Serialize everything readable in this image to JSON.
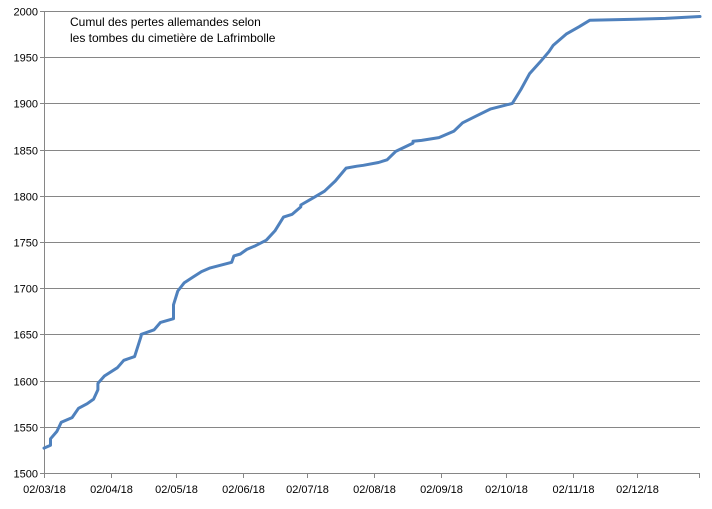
{
  "chart_data": {
    "type": "line",
    "title": "Cumul des pertes allemandes selon les tombes du cimetière de Lafrimbolle",
    "title_lines": [
      "Cumul des pertes allemandes selon",
      "les tombes du cimetière de Lafrimbolle"
    ],
    "xlabel": "",
    "ylabel": "",
    "ylim": [
      1500,
      2000
    ],
    "xlim": [
      "1918-03-02",
      "1918-12-31"
    ],
    "y_ticks": [
      "1500",
      "1550",
      "1600",
      "1650",
      "1700",
      "1750",
      "1800",
      "1850",
      "1900",
      "1950",
      "2000"
    ],
    "x_ticks": [
      {
        "date": "1918-03-02",
        "label": "02/03/18"
      },
      {
        "date": "1918-04-02",
        "label": "02/04/18"
      },
      {
        "date": "1918-05-02",
        "label": "02/05/18"
      },
      {
        "date": "1918-06-02",
        "label": "02/06/18"
      },
      {
        "date": "1918-07-02",
        "label": "02/07/18"
      },
      {
        "date": "1918-08-02",
        "label": "02/08/18"
      },
      {
        "date": "1918-09-02",
        "label": "02/09/18"
      },
      {
        "date": "1918-10-02",
        "label": "02/10/18"
      },
      {
        "date": "1918-11-02",
        "label": "02/11/18"
      },
      {
        "date": "1918-12-02",
        "label": "02/12/18"
      }
    ],
    "grid": "horizontal",
    "legend": "none",
    "line_color": "#4F81BD",
    "series": [
      {
        "x": [
          "1918-03-02",
          "1918-03-05",
          "1918-03-05",
          "1918-03-08",
          "1918-03-10",
          "1918-03-15",
          "1918-03-18",
          "1918-03-22",
          "1918-03-25",
          "1918-03-27",
          "1918-03-27",
          "1918-03-30",
          "1918-04-01",
          "1918-04-05",
          "1918-04-08",
          "1918-04-13",
          "1918-04-16",
          "1918-04-16",
          "1918-04-22",
          "1918-04-25",
          "1918-05-01",
          "1918-05-01",
          "1918-05-03",
          "1918-05-06",
          "1918-05-10",
          "1918-05-14",
          "1918-05-18",
          "1918-05-28",
          "1918-05-29",
          "1918-06-01",
          "1918-06-04",
          "1918-06-08",
          "1918-06-13",
          "1918-06-17",
          "1918-06-21",
          "1918-06-25",
          "1918-06-29",
          "1918-06-29",
          "1918-07-05",
          "1918-07-10",
          "1918-07-15",
          "1918-07-20",
          "1918-07-25",
          "1918-07-28",
          "1918-08-04",
          "1918-08-08",
          "1918-08-12",
          "1918-08-20",
          "1918-08-20",
          "1918-08-24",
          "1918-09-01",
          "1918-09-08",
          "1918-09-12",
          "1918-09-18",
          "1918-09-25",
          "1918-09-30",
          "1918-10-05",
          "1918-10-09",
          "1918-10-13",
          "1918-10-18",
          "1918-10-22",
          "1918-10-24",
          "1918-10-30",
          "1918-11-05",
          "1918-11-10",
          "1918-12-01",
          "1918-12-15",
          "1918-12-31"
        ],
        "y": [
          1527,
          1530,
          1537,
          1545,
          1555,
          1560,
          1570,
          1575,
          1580,
          1590,
          1597,
          1605,
          1608,
          1614,
          1622,
          1626,
          1648,
          1650,
          1655,
          1663,
          1667,
          1682,
          1697,
          1706,
          1712,
          1718,
          1722,
          1728,
          1735,
          1737,
          1742,
          1746,
          1752,
          1762,
          1777,
          1780,
          1788,
          1790,
          1798,
          1805,
          1816,
          1830,
          1832,
          1833,
          1836,
          1839,
          1848,
          1857,
          1859,
          1860,
          1863,
          1870,
          1879,
          1886,
          1894,
          1897,
          1900,
          1915,
          1932,
          1945,
          1956,
          1963,
          1975,
          1983,
          1990,
          1991,
          1992,
          1994
        ]
      }
    ]
  }
}
